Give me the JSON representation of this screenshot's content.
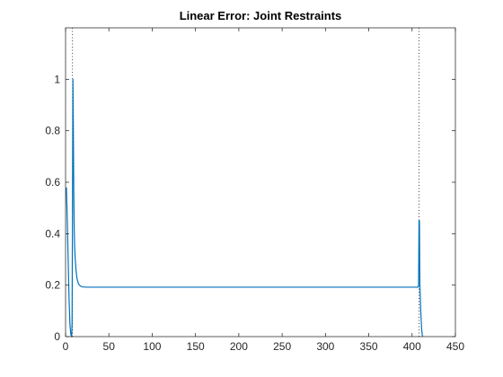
{
  "chart_data": {
    "type": "line",
    "title": "Linear Error: Joint Restraints",
    "xlabel": "",
    "ylabel": "",
    "xlim": [
      0,
      450
    ],
    "ylim": [
      0,
      1.2
    ],
    "x_ticks": [
      0,
      50,
      100,
      150,
      200,
      250,
      300,
      350,
      400,
      450
    ],
    "y_ticks": [
      0,
      0.2,
      0.4,
      0.6,
      0.8,
      1
    ],
    "x_tick_labels": [
      "0",
      "50",
      "100",
      "150",
      "200",
      "250",
      "300",
      "350",
      "400",
      "450"
    ],
    "y_tick_labels": [
      "0",
      "0.2",
      "0.4",
      "0.6",
      "0.8",
      "1"
    ],
    "grid": false,
    "series": [
      {
        "color": "#0072bd",
        "x": [
          1,
          2,
          3,
          4,
          5,
          6,
          7,
          7.5,
          8,
          8.5,
          9,
          9.5,
          10,
          10.5,
          11,
          12,
          13,
          14,
          15,
          16,
          18,
          20,
          25,
          30,
          50,
          100,
          200,
          300,
          400,
          407,
          407.5,
          408,
          408.5,
          409,
          410,
          411,
          412
        ],
        "y": [
          0.58,
          0.45,
          0.3,
          0.15,
          0.05,
          0.01,
          0.0,
          0.05,
          0.5,
          1.0,
          0.8,
          0.55,
          0.42,
          0.35,
          0.31,
          0.26,
          0.23,
          0.215,
          0.205,
          0.2,
          0.195,
          0.193,
          0.192,
          0.192,
          0.192,
          0.192,
          0.192,
          0.192,
          0.192,
          0.192,
          0.2,
          0.45,
          0.45,
          0.2,
          0.1,
          0.03,
          0.0
        ]
      }
    ],
    "vlines": [
      {
        "x": 8,
        "style": "dotted",
        "color": "#000000"
      },
      {
        "x": 408,
        "style": "dotted",
        "color": "#000000"
      }
    ]
  }
}
